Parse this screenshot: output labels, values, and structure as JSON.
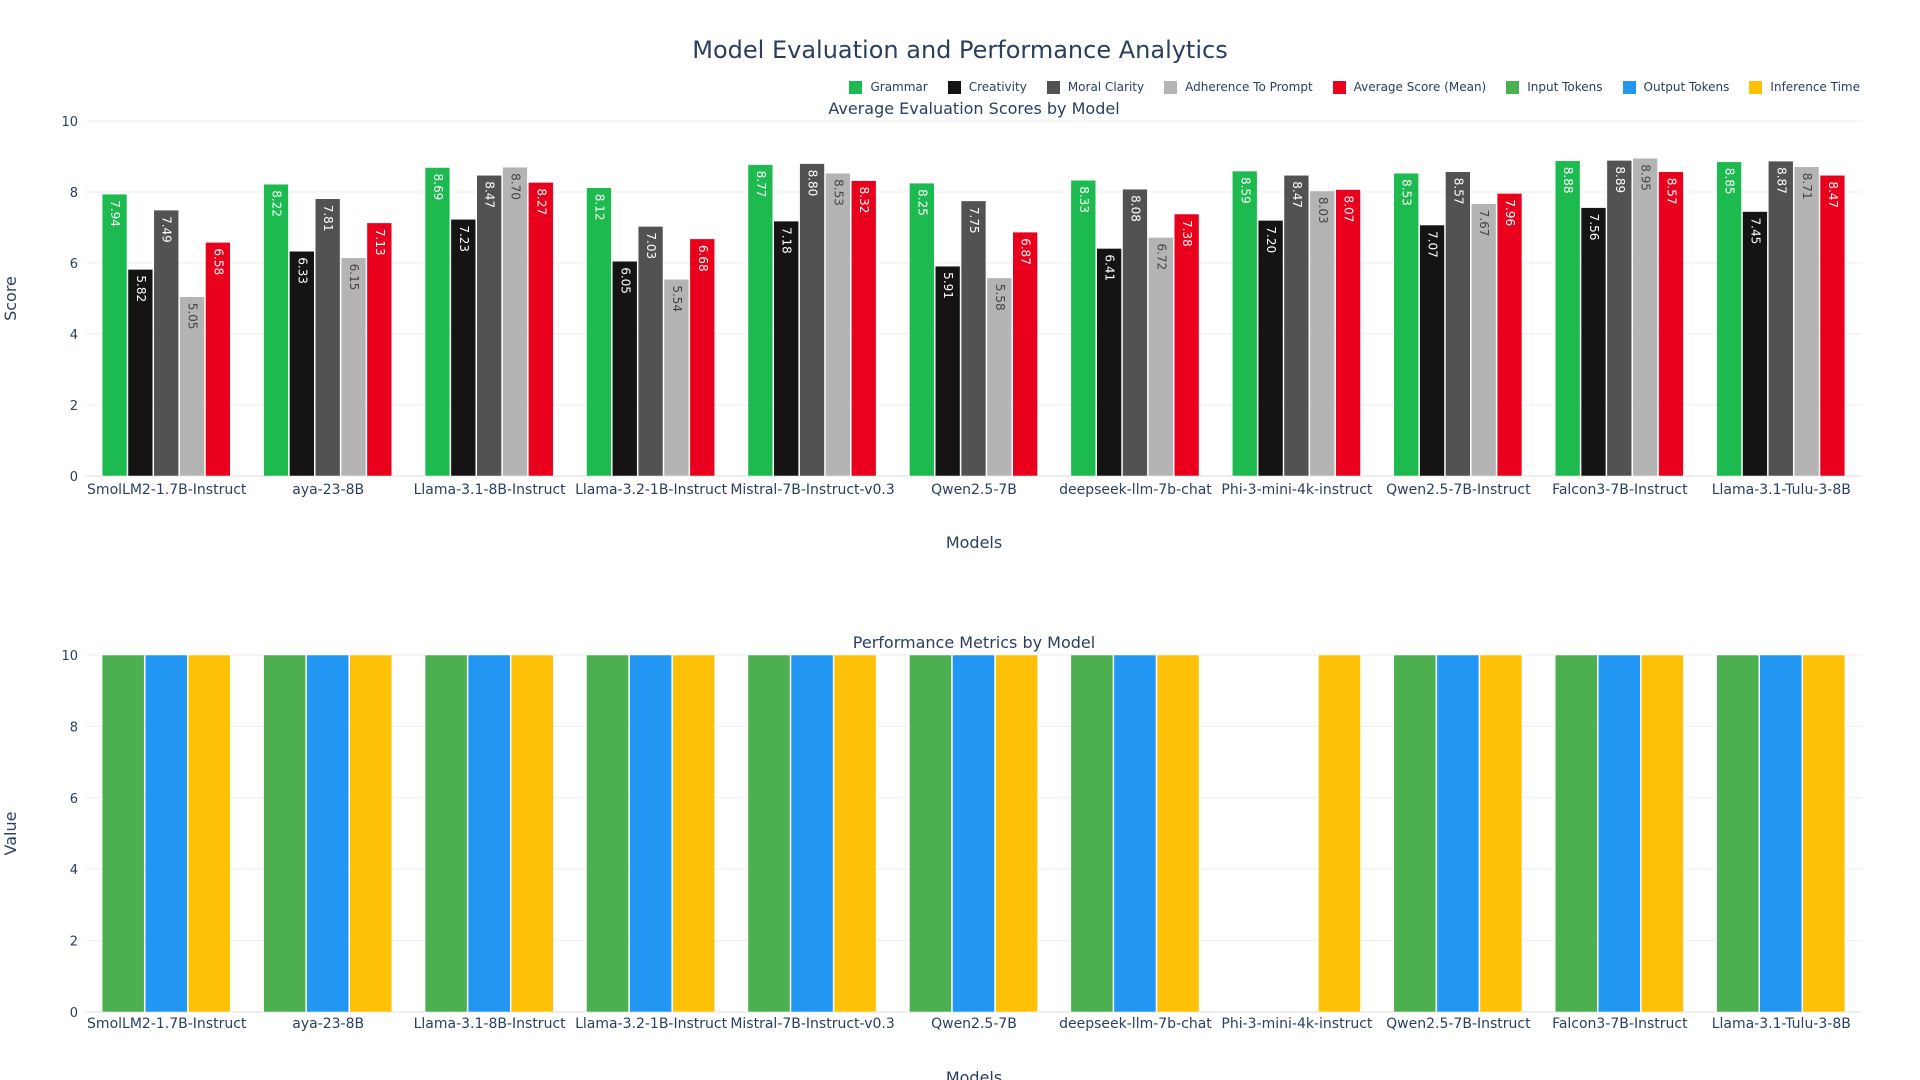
{
  "title": "Model Evaluation and Performance Analytics",
  "legend": [
    {
      "name": "Grammar",
      "color": "#1dbb4f"
    },
    {
      "name": "Creativity",
      "color": "#151313"
    },
    {
      "name": "Moral Clarity",
      "color": "#525252"
    },
    {
      "name": "Adherence To Prompt",
      "color": "#b4b4b4"
    },
    {
      "name": "Average Score (Mean)",
      "color": "#e8001c"
    },
    {
      "name": "Input Tokens",
      "color": "#4caf50"
    },
    {
      "name": "Output Tokens",
      "color": "#2196f3"
    },
    {
      "name": "Inference Time",
      "color": "#ffc107"
    }
  ],
  "chart_data": [
    {
      "type": "bar",
      "title": "Average Evaluation Scores by Model",
      "xlabel": "Models",
      "ylabel": "Score",
      "ylim": [
        0,
        10
      ],
      "yticks": [
        "0",
        "2",
        "4",
        "6",
        "8",
        "10"
      ],
      "grid": true,
      "categories": [
        "SmolLM2-1.7B-Instruct",
        "aya-23-8B",
        "Llama-3.1-8B-Instruct",
        "Llama-3.2-1B-Instruct",
        "Mistral-7B-Instruct-v0.3",
        "Qwen2.5-7B",
        "deepseek-llm-7b-chat",
        "Phi-3-mini-4k-instruct",
        "Qwen2.5-7B-Instruct",
        "Falcon3-7B-Instruct",
        "Llama-3.1-Tulu-3-8B"
      ],
      "series": [
        {
          "name": "Grammar",
          "color": "#1dbb4f",
          "label_color": "#ffffff",
          "values": [
            7.94,
            8.22,
            8.69,
            8.12,
            8.77,
            8.25,
            8.33,
            8.59,
            8.53,
            8.88,
            8.85
          ],
          "labels": [
            "7.94",
            "8.22",
            "8.69",
            "8.12",
            "8.77",
            "8.25",
            "8.33",
            "8.59",
            "8.53",
            "8.88",
            "8.85"
          ]
        },
        {
          "name": "Creativity",
          "color": "#151313",
          "label_color": "#ffffff",
          "values": [
            5.82,
            6.33,
            7.23,
            6.05,
            7.18,
            5.91,
            6.41,
            7.2,
            7.07,
            7.56,
            7.45
          ],
          "labels": [
            "5.82",
            "6.33",
            "7.23",
            "6.05",
            "7.18",
            "5.91",
            "6.41",
            "7.20",
            "7.07",
            "7.56",
            "7.45"
          ]
        },
        {
          "name": "Moral Clarity",
          "color": "#525252",
          "label_color": "#ffffff",
          "values": [
            7.49,
            7.81,
            8.47,
            7.03,
            8.8,
            7.75,
            8.08,
            8.47,
            8.57,
            8.89,
            8.87
          ],
          "labels": [
            "7.49",
            "7.81",
            "8.47",
            "7.03",
            "8.80",
            "7.75",
            "8.08",
            "8.47",
            "8.57",
            "8.89",
            "8.87"
          ]
        },
        {
          "name": "Adherence To Prompt",
          "color": "#b4b4b4",
          "label_color": "#444444",
          "values": [
            5.05,
            6.15,
            8.7,
            5.54,
            8.53,
            5.58,
            6.72,
            8.03,
            7.67,
            8.95,
            8.71
          ],
          "labels": [
            "5.05",
            "6.15",
            "8.70",
            "5.54",
            "8.53",
            "5.58",
            "6.72",
            "8.03",
            "7.67",
            "8.95",
            "8.71"
          ]
        },
        {
          "name": "Average Score (Mean)",
          "color": "#e8001c",
          "label_color": "#ffffff",
          "values": [
            6.58,
            7.13,
            8.27,
            6.68,
            8.32,
            6.87,
            7.38,
            8.07,
            7.96,
            8.57,
            8.47
          ],
          "labels": [
            "6.58",
            "7.13",
            "8.27",
            "6.68",
            "8.32",
            "6.87",
            "7.38",
            "8.07",
            "7.96",
            "8.57",
            "8.47"
          ]
        }
      ]
    },
    {
      "type": "bar",
      "title": "Performance Metrics by Model",
      "xlabel": "Models",
      "ylabel": "Value",
      "ylim": [
        0,
        10
      ],
      "yticks": [
        "0",
        "2",
        "4",
        "6",
        "8",
        "10"
      ],
      "grid": true,
      "categories": [
        "SmolLM2-1.7B-Instruct",
        "aya-23-8B",
        "Llama-3.1-8B-Instruct",
        "Llama-3.2-1B-Instruct",
        "Mistral-7B-Instruct-v0.3",
        "Qwen2.5-7B",
        "deepseek-llm-7b-chat",
        "Phi-3-mini-4k-instruct",
        "Qwen2.5-7B-Instruct",
        "Falcon3-7B-Instruct",
        "Llama-3.1-Tulu-3-8B"
      ],
      "series": [
        {
          "name": "Input Tokens",
          "color": "#4caf50",
          "values": [
            10,
            10,
            10,
            10,
            10,
            10,
            10,
            0,
            10,
            10,
            10
          ]
        },
        {
          "name": "Output Tokens",
          "color": "#2196f3",
          "values": [
            10,
            10,
            10,
            10,
            10,
            10,
            10,
            0,
            10,
            10,
            10
          ]
        },
        {
          "name": "Inference Time",
          "color": "#ffc107",
          "values": [
            10,
            10,
            10,
            10,
            10,
            10,
            10,
            10,
            10,
            10,
            10
          ]
        }
      ]
    }
  ]
}
